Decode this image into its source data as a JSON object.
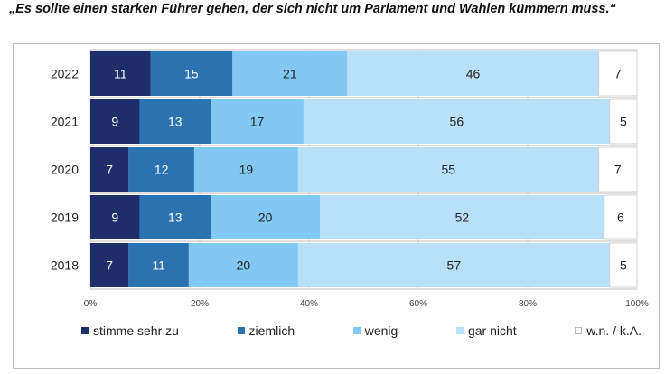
{
  "title": "„Es sollte einen starken Führer gehen, der sich nicht um Parlament und Wahlen kümmern muss.“",
  "chart_data": {
    "type": "bar",
    "orientation": "horizontal",
    "stacked": true,
    "percent_stacked": true,
    "categories": [
      "2022",
      "2021",
      "2020",
      "2019",
      "2018"
    ],
    "series": [
      {
        "name": "stimme sehr zu",
        "color": "#1f2d6b",
        "label_color": "#ffffff",
        "values": [
          11,
          9,
          7,
          9,
          7
        ]
      },
      {
        "name": "ziemlich",
        "color": "#2a73b0",
        "label_color": "#ffffff",
        "values": [
          15,
          13,
          12,
          13,
          11
        ]
      },
      {
        "name": "wenig",
        "color": "#82c8f2",
        "label_color": "#222222",
        "values": [
          21,
          17,
          19,
          20,
          20
        ]
      },
      {
        "name": "gar nicht",
        "color": "#b8e0f9",
        "label_color": "#222222",
        "values": [
          46,
          56,
          55,
          52,
          57
        ]
      },
      {
        "name": "w.n. / k.A.",
        "color": "#ffffff",
        "label_color": "#222222",
        "values": [
          7,
          5,
          7,
          6,
          5
        ]
      }
    ],
    "xlim": [
      0,
      100
    ],
    "x_ticks": [
      "0%",
      "20%",
      "40%",
      "60%",
      "80%",
      "100%"
    ],
    "grid": true,
    "legend_position": "bottom"
  }
}
